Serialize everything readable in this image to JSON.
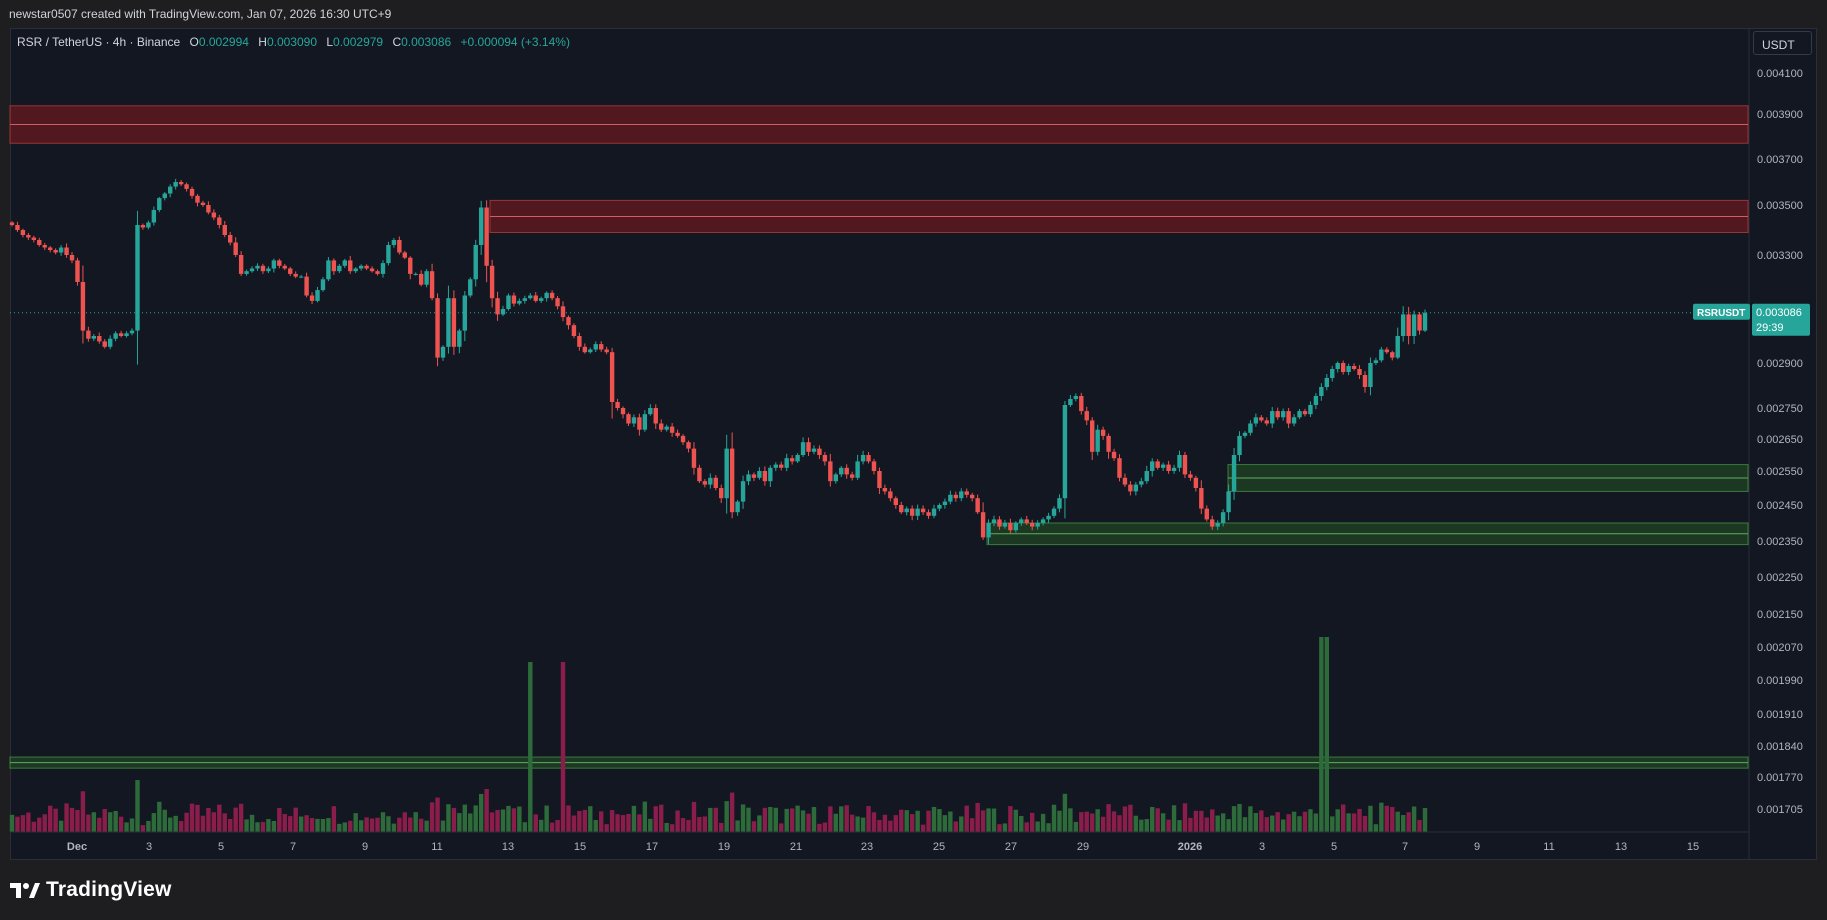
{
  "header": {
    "caption": "newstar0507 created with TradingView.com, Jan 07, 2026 16:30 UTC+9"
  },
  "legend": {
    "symbol": "RSR / TetherUS · 4h · Binance",
    "o_key": "O",
    "o_val": "0.002994",
    "h_key": "H",
    "h_val": "0.003090",
    "l_key": "L",
    "l_val": "0.002979",
    "c_key": "C",
    "c_val": "0.003086",
    "change": "+0.000094 (+3.14%)"
  },
  "currency_label": "USDT",
  "footer": {
    "brand": "TradingView",
    "logo_icon": "tradingview-logo-icon"
  },
  "colors": {
    "background": "#131722",
    "up": "#26a69a",
    "down": "#ef5350",
    "vol_up": "#2e6b3a",
    "vol_down": "#8a1d4a",
    "resistance_zone": "#5c1a1f",
    "support_zone": "#1e3d22",
    "price_label": "#26a69a"
  },
  "chart_data": {
    "type": "candlestick",
    "symbol": "RSRUSDT",
    "interval": "4h",
    "exchange": "Binance",
    "last_price": 0.003086,
    "countdown": "29:39",
    "price_axis_ticks": [
      "0.004100",
      "0.003900",
      "0.003700",
      "0.003500",
      "0.003300",
      "0.002900",
      "0.002750",
      "0.002650",
      "0.002550",
      "0.002450",
      "0.002350",
      "0.002250",
      "0.002150",
      "0.002070",
      "0.001990",
      "0.001910",
      "0.001840",
      "0.001770",
      "0.001705"
    ],
    "time_axis_ticks": [
      "Dec",
      "3",
      "5",
      "7",
      "9",
      "11",
      "13",
      "15",
      "17",
      "19",
      "21",
      "23",
      "25",
      "27",
      "29",
      "2026",
      "3",
      "5",
      "7",
      "9",
      "11",
      "13",
      "15"
    ],
    "price_range": [
      0.00168,
      0.00425
    ],
    "zones": [
      {
        "kind": "resistance",
        "from": 0.00377,
        "to": 0.00394
      },
      {
        "kind": "resistance",
        "from": 0.00339,
        "to": 0.00352
      },
      {
        "kind": "support",
        "from": 0.00249,
        "to": 0.00257
      },
      {
        "kind": "support",
        "from": 0.00234,
        "to": 0.0024
      },
      {
        "kind": "support-line",
        "from": 0.00179,
        "to": 0.001815
      }
    ],
    "series": [
      {
        "name": "RSRUSDT",
        "closes": [
          0.00342,
          0.0034,
          0.00338,
          0.00337,
          0.00336,
          0.00334,
          0.00333,
          0.00332,
          0.00331,
          0.00333,
          0.0033,
          0.00328,
          0.0032,
          0.00302,
          0.00299,
          0.003,
          0.00298,
          0.00296,
          0.00299,
          0.00301,
          0.003,
          0.00301,
          0.00302,
          0.00342,
          0.00341,
          0.00343,
          0.00348,
          0.00353,
          0.00355,
          0.00358,
          0.0036,
          0.00359,
          0.00357,
          0.00354,
          0.00351,
          0.0035,
          0.00347,
          0.00345,
          0.00342,
          0.00338,
          0.00335,
          0.0033,
          0.00323,
          0.00324,
          0.00325,
          0.00326,
          0.00324,
          0.00325,
          0.00328,
          0.00326,
          0.00325,
          0.00323,
          0.00322,
          0.00322,
          0.00315,
          0.00313,
          0.00317,
          0.00321,
          0.00328,
          0.00324,
          0.00326,
          0.00328,
          0.00324,
          0.00325,
          0.00326,
          0.00325,
          0.00324,
          0.00323,
          0.00327,
          0.00334,
          0.00336,
          0.00331,
          0.00329,
          0.00323,
          0.00323,
          0.00319,
          0.00324,
          0.00314,
          0.00292,
          0.00296,
          0.00314,
          0.00296,
          0.00302,
          0.00315,
          0.00321,
          0.00334,
          0.00349,
          0.00326,
          0.00314,
          0.00308,
          0.0031,
          0.00315,
          0.00312,
          0.00313,
          0.00314,
          0.00315,
          0.00313,
          0.00314,
          0.00316,
          0.00314,
          0.00311,
          0.00307,
          0.00304,
          0.003,
          0.00296,
          0.00294,
          0.00295,
          0.00297,
          0.00295,
          0.00294,
          0.00277,
          0.00275,
          0.00273,
          0.0027,
          0.00272,
          0.00268,
          0.00273,
          0.00275,
          0.0027,
          0.00268,
          0.00269,
          0.00267,
          0.00266,
          0.00264,
          0.00262,
          0.00256,
          0.00252,
          0.00251,
          0.00253,
          0.0025,
          0.00247,
          0.00262,
          0.00243,
          0.00246,
          0.00252,
          0.00254,
          0.00253,
          0.00255,
          0.00252,
          0.00256,
          0.00257,
          0.00256,
          0.00259,
          0.00258,
          0.0026,
          0.00264,
          0.00261,
          0.00262,
          0.0026,
          0.00258,
          0.00252,
          0.00254,
          0.00256,
          0.00254,
          0.00253,
          0.00258,
          0.0026,
          0.00258,
          0.00255,
          0.0025,
          0.00249,
          0.00247,
          0.00245,
          0.00243,
          0.00244,
          0.00242,
          0.00244,
          0.00243,
          0.00242,
          0.00244,
          0.00245,
          0.00246,
          0.00248,
          0.00247,
          0.00249,
          0.00248,
          0.00247,
          0.00243,
          0.00236,
          0.0024,
          0.00241,
          0.00239,
          0.0024,
          0.00238,
          0.0024,
          0.00241,
          0.0024,
          0.00239,
          0.0024,
          0.00241,
          0.00242,
          0.00244,
          0.00247,
          0.00276,
          0.00278,
          0.00279,
          0.00274,
          0.00271,
          0.00261,
          0.00268,
          0.00266,
          0.00261,
          0.00259,
          0.00253,
          0.00251,
          0.00249,
          0.00251,
          0.00252,
          0.00255,
          0.00258,
          0.00256,
          0.00257,
          0.00255,
          0.00256,
          0.0026,
          0.00254,
          0.00253,
          0.0025,
          0.00244,
          0.00241,
          0.00239,
          0.0024,
          0.00243,
          0.00249,
          0.0026,
          0.00266,
          0.00267,
          0.0027,
          0.00272,
          0.00271,
          0.0027,
          0.00274,
          0.00272,
          0.00274,
          0.0027,
          0.00272,
          0.00274,
          0.00273,
          0.00276,
          0.00279,
          0.00282,
          0.00285,
          0.00288,
          0.0029,
          0.00287,
          0.00289,
          0.00288,
          0.00286,
          0.00282,
          0.0029,
          0.00291,
          0.00295,
          0.00294,
          0.00292,
          0.003,
          0.00308,
          0.003,
          0.00308,
          0.00302,
          0.003086
        ]
      }
    ]
  }
}
